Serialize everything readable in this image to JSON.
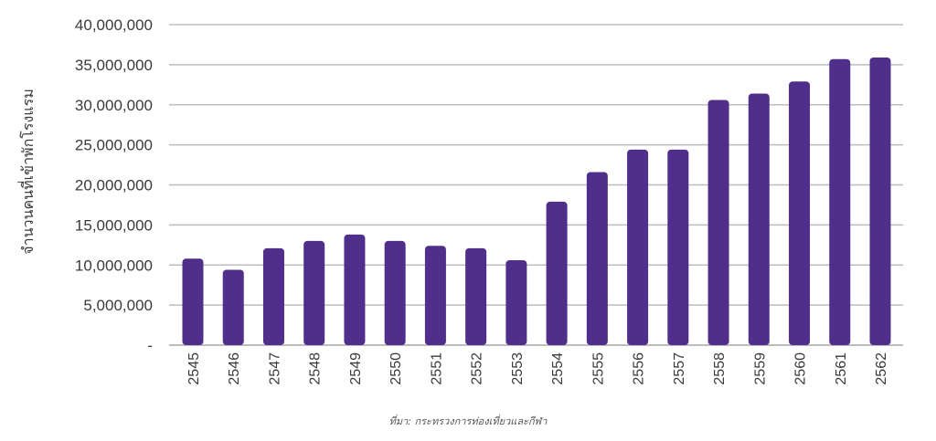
{
  "chart_data": {
    "type": "bar",
    "ylabel": "จำนวนคนที่เข้าพักโรงแรม",
    "xlabel": "",
    "categories": [
      "2545",
      "2546",
      "2547",
      "2548",
      "2549",
      "2550",
      "2551",
      "2552",
      "2553",
      "2554",
      "2555",
      "2556",
      "2557",
      "2558",
      "2559",
      "2560",
      "2561",
      "2562"
    ],
    "values": [
      10800000,
      9400000,
      12100000,
      13000000,
      13800000,
      13000000,
      12400000,
      12100000,
      10600000,
      17900000,
      21600000,
      24400000,
      24400000,
      30600000,
      31400000,
      32900000,
      35700000,
      35900000
    ],
    "ylim": [
      0,
      40000000
    ],
    "yticks": [
      0,
      5000000,
      10000000,
      15000000,
      20000000,
      25000000,
      30000000,
      35000000,
      40000000
    ],
    "ytick_labels": [
      "-",
      "5,000,000",
      "10,000,000",
      "15,000,000",
      "20,000,000",
      "25,000,000",
      "30,000,000",
      "35,000,000",
      "40,000,000"
    ],
    "grid": true,
    "bar_color": "#4f2e8c",
    "grid_color": "#bdbdbd",
    "source": "ที่มา: กระทรวงการท่องเที่ยวและกีฬา"
  }
}
